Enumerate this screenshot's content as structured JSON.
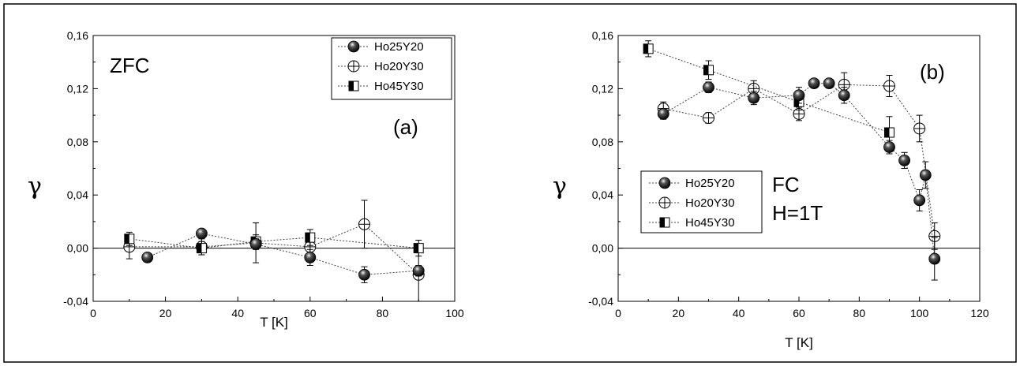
{
  "chart_data": [
    {
      "type": "scatter",
      "panel": "a",
      "xlabel": "T [K]",
      "ylabel": "γ",
      "xlim": [
        0,
        100
      ],
      "ylim": [
        -0.04,
        0.16
      ],
      "xticks": [
        "0",
        "20",
        "40",
        "60",
        "80",
        "100"
      ],
      "yticks": [
        "-0,04",
        "0,00",
        "0,04",
        "0,08",
        "0,12",
        "0,16"
      ],
      "annotations": [
        "ZFC",
        "(a)"
      ],
      "legend_position": "top-right",
      "series": [
        {
          "name": "Ho25Y20",
          "marker": "ball",
          "x": [
            15,
            30,
            45,
            60,
            75,
            90
          ],
          "y": [
            -0.007,
            0.011,
            0.003,
            -0.007,
            -0.02,
            -0.017
          ],
          "err": [
            0.003,
            0.003,
            0.004,
            0.006,
            0.006,
            0.004
          ]
        },
        {
          "name": "Ho20Y30",
          "marker": "circle-plus",
          "x": [
            10,
            30,
            45,
            60,
            75,
            90
          ],
          "y": [
            0.001,
            0.001,
            0.004,
            0.001,
            0.018,
            -0.02
          ],
          "err": [
            0.009,
            0.006,
            0.015,
            0.006,
            0.018,
            0.02
          ]
        },
        {
          "name": "Ho45Y30",
          "marker": "half-square",
          "x": [
            10,
            30,
            45,
            60,
            90
          ],
          "y": [
            0.007,
            0.0,
            0.005,
            0.008,
            0.0
          ],
          "err": [
            0.005,
            0.005,
            0.005,
            0.006,
            0.006
          ]
        }
      ]
    },
    {
      "type": "scatter",
      "panel": "b",
      "xlabel": "T [K]",
      "ylabel": "γ",
      "xlim": [
        0,
        120
      ],
      "ylim": [
        -0.04,
        0.16
      ],
      "xticks": [
        "0",
        "20",
        "40",
        "60",
        "80",
        "100",
        "120"
      ],
      "yticks": [
        "-0,04",
        "0,00",
        "0,04",
        "0,08",
        "0,12",
        "0,16"
      ],
      "annotations": [
        "(b)",
        "FC",
        "H=1T"
      ],
      "legend_position": "bottom-left",
      "series": [
        {
          "name": "Ho25Y20",
          "marker": "ball",
          "x": [
            15,
            30,
            45,
            60,
            65,
            70,
            75,
            90,
            95,
            100,
            102,
            105
          ],
          "y": [
            0.101,
            0.121,
            0.113,
            0.115,
            0.124,
            0.124,
            0.115,
            0.076,
            0.066,
            0.036,
            0.055,
            -0.008
          ],
          "err": [
            0.004,
            0.004,
            0.005,
            0.006,
            0.003,
            0.003,
            0.006,
            0.005,
            0.006,
            0.008,
            0.01,
            0.016
          ]
        },
        {
          "name": "Ho20Y30",
          "marker": "circle-plus",
          "x": [
            15,
            30,
            45,
            60,
            75,
            90,
            100,
            105
          ],
          "y": [
            0.105,
            0.098,
            0.12,
            0.101,
            0.123,
            0.122,
            0.09,
            0.009
          ],
          "err": [
            0.005,
            0.004,
            0.006,
            0.005,
            0.009,
            0.008,
            0.01,
            0.01
          ]
        },
        {
          "name": "Ho45Y30",
          "marker": "half-square",
          "x": [
            10,
            30,
            60,
            90
          ],
          "y": [
            0.15,
            0.134,
            0.11,
            0.087
          ],
          "err": [
            0.006,
            0.007,
            0.006,
            0.012
          ]
        }
      ]
    }
  ]
}
